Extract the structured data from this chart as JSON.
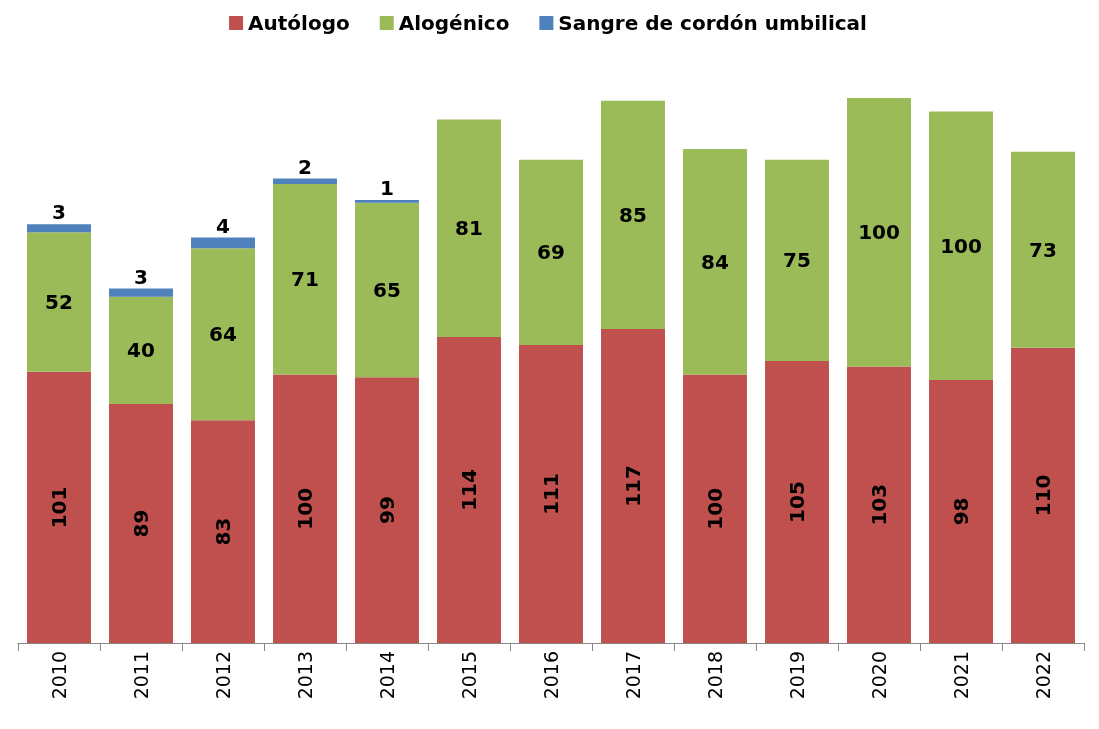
{
  "chart_data": {
    "type": "bar",
    "stacked": true,
    "data_labels": true,
    "legend": "top",
    "grid": false,
    "categories": [
      "2010",
      "2011",
      "2012",
      "2013",
      "2014",
      "2015",
      "2016",
      "2017",
      "2018",
      "2019",
      "2020",
      "2021",
      "2022"
    ],
    "series": [
      {
        "name": "Autólogo",
        "color": "#c0504d",
        "values": [
          101,
          89,
          83,
          100,
          99,
          114,
          111,
          117,
          100,
          105,
          103,
          98,
          110
        ]
      },
      {
        "name": "Alogénico",
        "color": "#9bbb59",
        "values": [
          52,
          40,
          64,
          71,
          65,
          81,
          69,
          85,
          84,
          75,
          100,
          100,
          73
        ]
      },
      {
        "name": "Sangre de cordón umbilical",
        "color": "#4f81bd",
        "values": [
          3,
          3,
          4,
          2,
          1,
          null,
          null,
          null,
          null,
          null,
          null,
          null,
          null
        ]
      }
    ]
  }
}
